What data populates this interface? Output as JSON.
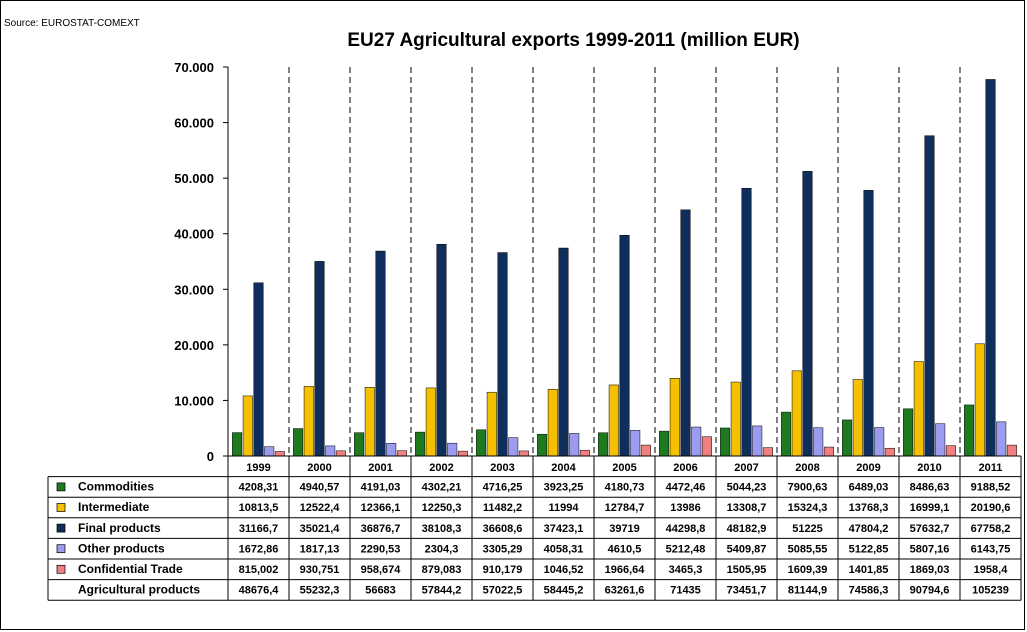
{
  "source": "Source: EUROSTAT-COMEXT",
  "chart_data": {
    "type": "bar",
    "title": "EU27 Agricultural exports 1999-2011 (million EUR)",
    "categories": [
      "1999",
      "2000",
      "2001",
      "2002",
      "2003",
      "2004",
      "2005",
      "2006",
      "2007",
      "2008",
      "2009",
      "2010",
      "2011"
    ],
    "ylim": [
      0,
      70000
    ],
    "yticks": [
      "0",
      "10.000",
      "20.000",
      "30.000",
      "40.000",
      "50.000",
      "60.000",
      "70.000"
    ],
    "grid": "vertical dashed",
    "series": [
      {
        "name": "Commodities",
        "color": "#1f7a1f",
        "values": [
          4208.31,
          4940.57,
          4191.03,
          4302.21,
          4716.25,
          3923.25,
          4180.73,
          4472.46,
          5044.23,
          7900.63,
          6489.03,
          8486.63,
          9188.52
        ],
        "labels": [
          "4208,31",
          "4940,57",
          "4191,03",
          "4302,21",
          "4716,25",
          "3923,25",
          "4180,73",
          "4472,46",
          "5044,23",
          "7900,63",
          "6489,03",
          "8486,63",
          "9188,52"
        ]
      },
      {
        "name": "Intermediate",
        "color": "#f5c000",
        "values": [
          10813.5,
          12522.4,
          12366.1,
          12250.3,
          11482.2,
          11994,
          12784.7,
          13986,
          13308.7,
          15324.3,
          13768.3,
          16999.1,
          20190.6
        ],
        "labels": [
          "10813,5",
          "12522,4",
          "12366,1",
          "12250,3",
          "11482,2",
          "11994",
          "12784,7",
          "13986",
          "13308,7",
          "15324,3",
          "13768,3",
          "16999,1",
          "20190,6"
        ]
      },
      {
        "name": "Final products",
        "color": "#0f2e5c",
        "values": [
          31166.7,
          35021.4,
          36876.7,
          38108.3,
          36608.6,
          37423.1,
          39719,
          44298.8,
          48182.9,
          51225,
          47804.2,
          57632.7,
          67758.2
        ],
        "labels": [
          "31166,7",
          "35021,4",
          "36876,7",
          "38108,3",
          "36608,6",
          "37423,1",
          "39719",
          "44298,8",
          "48182,9",
          "51225",
          "47804,2",
          "57632,7",
          "67758,2"
        ]
      },
      {
        "name": "Other products",
        "color": "#9b9bf0",
        "values": [
          1672.86,
          1817.13,
          2290.53,
          2304.3,
          3305.29,
          4058.31,
          4610.5,
          5212.48,
          5409.87,
          5085.55,
          5122.85,
          5807.16,
          6143.75
        ],
        "labels": [
          "1672,86",
          "1817,13",
          "2290,53",
          "2304,3",
          "3305,29",
          "4058,31",
          "4610,5",
          "5212,48",
          "5409,87",
          "5085,55",
          "5122,85",
          "5807,16",
          "6143,75"
        ]
      },
      {
        "name": "Confidential Trade",
        "color": "#f08080",
        "values": [
          815.002,
          930.751,
          958.674,
          879.083,
          910.179,
          1046.52,
          1966.64,
          3465.3,
          1505.95,
          1609.39,
          1401.85,
          1869.03,
          1958.4
        ],
        "labels": [
          "815,002",
          "930,751",
          "958,674",
          "879,083",
          "910,179",
          "1046,52",
          "1966,64",
          "3465,3",
          "1505,95",
          "1609,39",
          "1401,85",
          "1869,03",
          "1958,4"
        ]
      }
    ],
    "total_row": {
      "name": "Agricultural products",
      "labels": [
        "48676,4",
        "55232,3",
        "56683",
        "57844,2",
        "57022,5",
        "58445,2",
        "63261,6",
        "71435",
        "73451,7",
        "81144,9",
        "74586,3",
        "90794,6",
        "105239"
      ]
    }
  }
}
